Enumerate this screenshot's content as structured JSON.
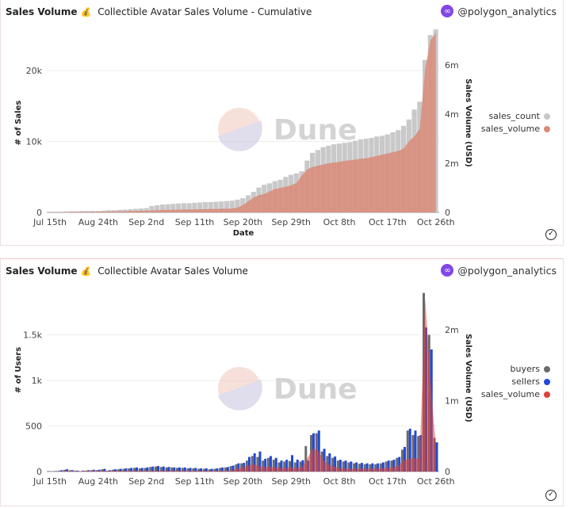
{
  "watermark": "Dune",
  "cards": [
    {
      "title": "Sales Volume",
      "subtitle": "Collectible Avatar Sales Volume - Cumulative",
      "owner": "@polygon_analytics"
    },
    {
      "title": "Sales Volume",
      "subtitle": "Collectible Avatar Sales Volume",
      "owner": "@polygon_analytics"
    }
  ],
  "colors": {
    "sales_count": "#c9c9c9",
    "sales_volume_1": "#d98b78",
    "buyers": "#6b6b6b",
    "sellers": "#2348d8",
    "sales_volume_2": "#e0403a",
    "brand": "#8247e5"
  },
  "chart_data": [
    {
      "type": "bar",
      "title": "Collectible Avatar Sales Volume - Cumulative",
      "xlabel": "Date",
      "ylabel": "# of Sales",
      "y2label": "Sales Volume (USD)",
      "x_ticks": [
        "Jul 15th",
        "Aug 24th",
        "Sep 2nd",
        "Sep 11th",
        "Sep 20th",
        "Sep 29th",
        "Oct 8th",
        "Oct 17th",
        "Oct 26th"
      ],
      "y_ticks": [
        "0",
        "10k",
        "20k"
      ],
      "y2_ticks": [
        "0",
        "2m",
        "4m",
        "6m"
      ],
      "ylim": [
        0,
        27000
      ],
      "y2lim": [
        0,
        7500000
      ],
      "grid": true,
      "legend": "right",
      "series": [
        {
          "name": "sales_count",
          "type": "bar",
          "axis": "left",
          "values": [
            100,
            100,
            100,
            150,
            150,
            150,
            200,
            200,
            200,
            200,
            250,
            300,
            300,
            350,
            400,
            450,
            500,
            550,
            600,
            900,
            1000,
            1100,
            1150,
            1200,
            1250,
            1300,
            1300,
            1350,
            1400,
            1450,
            1450,
            1500,
            1550,
            1600,
            1650,
            1800,
            2000,
            2400,
            2900,
            3500,
            3900,
            4100,
            4400,
            4600,
            5000,
            5300,
            5500,
            5800,
            7300,
            8400,
            8800,
            9200,
            9400,
            9600,
            9700,
            9800,
            9900,
            10100,
            10300,
            10400,
            10500,
            10700,
            10800,
            11000,
            11300,
            11600,
            12200,
            13100,
            14500,
            15600,
            21500,
            25000,
            25800
          ]
        },
        {
          "name": "sales_volume",
          "type": "area",
          "axis": "right",
          "values": [
            10000,
            10000,
            10000,
            10000,
            20000,
            20000,
            20000,
            20000,
            30000,
            30000,
            30000,
            40000,
            40000,
            50000,
            50000,
            60000,
            60000,
            70000,
            70000,
            80000,
            90000,
            100000,
            100000,
            110000,
            110000,
            120000,
            120000,
            120000,
            130000,
            130000,
            140000,
            140000,
            150000,
            150000,
            160000,
            200000,
            300000,
            450000,
            600000,
            700000,
            750000,
            850000,
            950000,
            1000000,
            1050000,
            1100000,
            1200000,
            1500000,
            1750000,
            1850000,
            1900000,
            1950000,
            2000000,
            2030000,
            2060000,
            2100000,
            2120000,
            2150000,
            2180000,
            2200000,
            2250000,
            2300000,
            2350000,
            2400000,
            2450000,
            2500000,
            2600000,
            2900000,
            3100000,
            3400000,
            5800000,
            7000000,
            7300000
          ]
        }
      ]
    },
    {
      "type": "bar",
      "title": "Collectible Avatar Sales Volume",
      "ylabel": "# of Users",
      "y2label": "Sales Volume (USD)",
      "x_ticks": [
        "Jul 15th",
        "Aug 24th",
        "Sep 2nd",
        "Sep 11th",
        "Sep 20th",
        "Sep 29th",
        "Oct 8th",
        "Oct 17th",
        "Oct 26th"
      ],
      "y_ticks": [
        "0",
        "500",
        "1k",
        "1.5k"
      ],
      "y2_ticks": [
        "0",
        "1m",
        "2m"
      ],
      "ylim": [
        0,
        2000
      ],
      "y2lim": [
        0,
        2600000
      ],
      "grid": true,
      "legend": "right",
      "series": [
        {
          "name": "buyers",
          "type": "bar",
          "axis": "left",
          "values": [
            5,
            5,
            10,
            20,
            15,
            10,
            5,
            10,
            15,
            15,
            25,
            10,
            20,
            25,
            30,
            35,
            40,
            35,
            40,
            50,
            55,
            50,
            45,
            45,
            40,
            40,
            35,
            35,
            30,
            30,
            25,
            30,
            40,
            45,
            60,
            80,
            90,
            120,
            170,
            160,
            120,
            150,
            130,
            100,
            110,
            115,
            100,
            110,
            280,
            400,
            420,
            220,
            170,
            150,
            120,
            110,
            100,
            90,
            85,
            80,
            80,
            80,
            90,
            110,
            120,
            150,
            240,
            450,
            400,
            390,
            1960,
            1500,
            370
          ]
        },
        {
          "name": "sellers",
          "type": "bar",
          "axis": "left",
          "values": [
            2,
            5,
            15,
            25,
            15,
            10,
            10,
            15,
            20,
            20,
            30,
            15,
            25,
            30,
            35,
            40,
            45,
            40,
            45,
            55,
            60,
            55,
            50,
            45,
            45,
            45,
            40,
            40,
            35,
            35,
            30,
            35,
            45,
            50,
            65,
            90,
            95,
            160,
            200,
            220,
            140,
            170,
            150,
            120,
            130,
            180,
            130,
            125,
            120,
            420,
            450,
            250,
            200,
            165,
            130,
            120,
            110,
            100,
            95,
            90,
            90,
            90,
            100,
            120,
            130,
            160,
            270,
            470,
            450,
            400,
            1580,
            1340,
            320
          ]
        },
        {
          "name": "sales_volume",
          "type": "area",
          "axis": "right",
          "values": [
            0,
            0,
            5000,
            10000,
            5000,
            5000,
            5000,
            10000,
            10000,
            10000,
            10000,
            10000,
            10000,
            10000,
            10000,
            10000,
            10000,
            10000,
            10000,
            10000,
            10000,
            10000,
            10000,
            10000,
            10000,
            10000,
            10000,
            10000,
            10000,
            10000,
            10000,
            10000,
            10000,
            10000,
            20000,
            40000,
            60000,
            90000,
            100000,
            80000,
            60000,
            70000,
            60000,
            50000,
            50000,
            60000,
            50000,
            60000,
            180000,
            320000,
            300000,
            160000,
            100000,
            70000,
            50000,
            40000,
            40000,
            40000,
            40000,
            40000,
            40000,
            40000,
            50000,
            50000,
            60000,
            80000,
            160000,
            180000,
            190000,
            180000,
            2450000,
            1300000,
            350000
          ]
        }
      ]
    }
  ]
}
